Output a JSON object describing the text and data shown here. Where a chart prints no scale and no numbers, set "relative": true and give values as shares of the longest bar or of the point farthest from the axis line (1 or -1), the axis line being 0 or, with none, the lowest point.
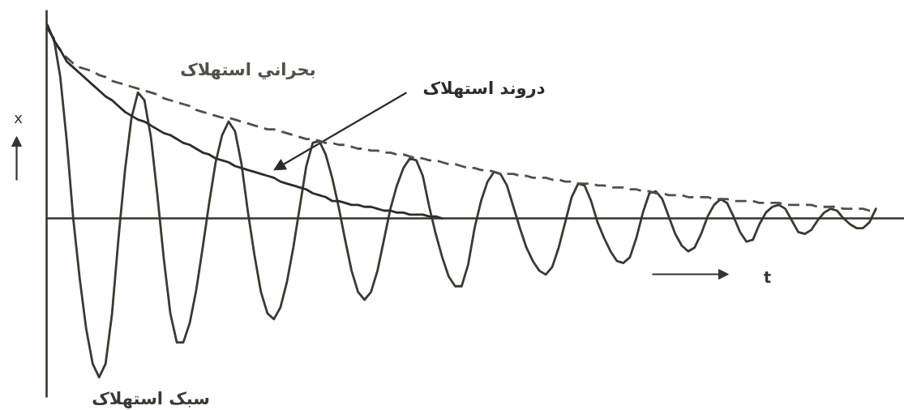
{
  "chart_data": {
    "type": "line",
    "relative": true,
    "grid": false,
    "xlabel": "t",
    "ylabel": "x",
    "categories": [
      null,
      null,
      null,
      null,
      null,
      null,
      null,
      null,
      null,
      null,
      null,
      null,
      null,
      null,
      null,
      null,
      null,
      null,
      null,
      null,
      null,
      null,
      null,
      null,
      null,
      null,
      null,
      null,
      null,
      null,
      null,
      null,
      null,
      null,
      null,
      null,
      null,
      null,
      null,
      null,
      null,
      null,
      null,
      null,
      null,
      null,
      null,
      null,
      null,
      null,
      null,
      null,
      null,
      null,
      null,
      null,
      null,
      null,
      null,
      null,
      null,
      null,
      null,
      null,
      null,
      null,
      null,
      null,
      null,
      null,
      null,
      null,
      null,
      null,
      null,
      null,
      null,
      null,
      null,
      null,
      null,
      null,
      null,
      null,
      null,
      null,
      null,
      null,
      null,
      null,
      null,
      null,
      null,
      null,
      null,
      null,
      null,
      null,
      null,
      null,
      null,
      null,
      null,
      null,
      null,
      null,
      null,
      null,
      null,
      null,
      null,
      null,
      null,
      null,
      null,
      null,
      null,
      null,
      null,
      null,
      null,
      null,
      null,
      null,
      null,
      null,
      null,
      null,
      null
    ],
    "series": [
      {
        "name": "سبک استهلاک",
        "color": "#3a3a34",
        "values": [
          0.98,
          0.93,
          0.73,
          0.4,
          0.0,
          -0.31,
          -0.57,
          -0.75,
          -0.82,
          -0.75,
          -0.49,
          -0.1,
          0.25,
          0.52,
          0.65,
          0.61,
          0.42,
          0.12,
          -0.21,
          -0.49,
          -0.64,
          -0.64,
          -0.54,
          -0.37,
          -0.15,
          0.08,
          0.29,
          0.43,
          0.5,
          0.45,
          0.28,
          0.03,
          -0.19,
          -0.38,
          -0.49,
          -0.52,
          -0.46,
          -0.33,
          -0.15,
          0.06,
          0.27,
          0.39,
          0.4,
          0.33,
          0.21,
          0.06,
          -0.11,
          -0.27,
          -0.38,
          -0.42,
          -0.38,
          -0.27,
          -0.11,
          0.05,
          0.17,
          0.26,
          0.31,
          0.3,
          0.22,
          0.06,
          -0.08,
          -0.2,
          -0.3,
          -0.35,
          -0.35,
          -0.24,
          -0.05,
          0.09,
          0.19,
          0.24,
          0.23,
          0.17,
          0.06,
          -0.05,
          -0.15,
          -0.22,
          -0.27,
          -0.29,
          -0.25,
          -0.15,
          -0.02,
          0.11,
          0.18,
          0.17,
          0.09,
          -0.02,
          -0.1,
          -0.17,
          -0.22,
          -0.23,
          -0.2,
          -0.1,
          0.03,
          0.13,
          0.14,
          0.1,
          0.01,
          -0.08,
          -0.14,
          -0.17,
          -0.15,
          -0.08,
          0.01,
          0.07,
          0.1,
          0.08,
          0.01,
          -0.07,
          -0.12,
          -0.11,
          -0.03,
          0.03,
          0.06,
          0.07,
          0.05,
          -0.01,
          -0.07,
          -0.08,
          -0.06,
          -0.01,
          0.03,
          0.05,
          0.04,
          0.0,
          -0.03,
          -0.05,
          -0.05,
          -0.02,
          0.05
        ]
      },
      {
        "name": "بحراني استهلاک",
        "color": "#505049",
        "line_style": "dashed",
        "values": [
          null,
          0.91,
          0.87,
          0.83,
          0.8,
          0.78,
          0.77,
          0.76,
          0.74,
          0.73,
          0.71,
          0.7,
          0.69,
          0.68,
          0.67,
          0.66,
          0.65,
          0.64,
          0.62,
          0.61,
          0.6,
          0.59,
          0.58,
          0.56,
          0.55,
          0.54,
          0.53,
          0.52,
          0.52,
          0.51,
          0.5,
          0.49,
          0.48,
          0.47,
          0.46,
          0.46,
          0.45,
          0.44,
          0.43,
          0.42,
          0.41,
          0.41,
          0.4,
          0.39,
          0.39,
          0.38,
          0.38,
          0.37,
          0.36,
          0.36,
          0.35,
          0.35,
          0.34,
          0.34,
          0.33,
          0.33,
          0.32,
          0.31,
          0.31,
          0.3,
          0.3,
          0.29,
          0.28,
          0.28,
          0.27,
          0.26,
          0.26,
          0.25,
          0.25,
          0.24,
          0.23,
          0.23,
          0.23,
          0.22,
          0.22,
          0.21,
          0.21,
          0.21,
          0.2,
          0.2,
          0.19,
          0.19,
          0.18,
          0.18,
          0.18,
          0.17,
          0.17,
          0.16,
          0.16,
          0.16,
          0.15,
          0.15,
          0.14,
          0.14,
          0.13,
          0.13,
          0.12,
          0.12,
          0.12,
          0.11,
          0.11,
          0.11,
          0.11,
          0.1,
          0.1,
          0.1,
          0.09,
          0.09,
          0.09,
          0.09,
          0.08,
          0.08,
          0.08,
          0.08,
          0.07,
          0.07,
          0.07,
          0.07,
          0.07,
          0.06,
          0.06,
          0.06,
          0.06,
          0.05,
          0.05,
          0.05,
          0.05,
          0.04,
          0.04
        ]
      },
      {
        "name": "دروند استهلاک",
        "color": "#2c2c28",
        "values": [
          1.0,
          0.92,
          0.87,
          0.81,
          0.78,
          0.75,
          0.72,
          0.69,
          0.66,
          0.63,
          0.61,
          0.58,
          0.55,
          0.53,
          0.51,
          0.5,
          0.48,
          0.46,
          0.44,
          0.43,
          0.41,
          0.39,
          0.38,
          0.36,
          0.34,
          0.33,
          0.31,
          0.3,
          0.29,
          0.27,
          0.26,
          0.25,
          0.24,
          0.23,
          0.22,
          0.21,
          0.19,
          0.18,
          0.17,
          0.16,
          0.15,
          0.13,
          0.12,
          0.11,
          0.09,
          0.09,
          0.08,
          0.07,
          0.07,
          0.06,
          0.06,
          0.05,
          0.04,
          0.04,
          0.03,
          0.03,
          0.02,
          0.02,
          0.02,
          0.01,
          0.01,
          0.0,
          null,
          null,
          null,
          null,
          null,
          null,
          null,
          null,
          null,
          null,
          null,
          null,
          null,
          null,
          null,
          null,
          null,
          null,
          null,
          null,
          null,
          null,
          null,
          null,
          null,
          null,
          null,
          null,
          null,
          null,
          null,
          null,
          null,
          null,
          null,
          null,
          null,
          null,
          null,
          null,
          null,
          null,
          null,
          null,
          null,
          null,
          null,
          null,
          null,
          null,
          null,
          null,
          null,
          null,
          null,
          null,
          null,
          null,
          null,
          null,
          null,
          null,
          null,
          null,
          null,
          null,
          null
        ]
      }
    ]
  }
}
